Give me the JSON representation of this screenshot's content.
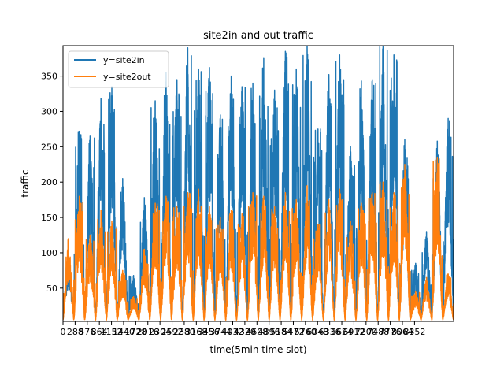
{
  "chart_data": {
    "type": "line",
    "title": "site2in and out traffic",
    "xlabel": "time(5min time slot)",
    "ylabel": "traffic",
    "x_range": [
      0,
      3600
    ],
    "ylim": [
      3,
      393
    ],
    "y_ticks": [
      50,
      100,
      150,
      200,
      250,
      300,
      350
    ],
    "x_tick_labels": [
      "0",
      "288",
      "576",
      "864",
      "1152",
      "1440",
      "1728",
      "2016",
      "2304",
      "2592",
      "2880",
      "3168",
      "3456",
      "3744",
      "4032",
      "4320",
      "4608",
      "4896",
      "5184",
      "5472",
      "5760",
      "6048",
      "6336",
      "6624",
      "6912",
      "7200",
      "7488",
      "7776",
      "8064",
      "8352"
    ],
    "grid": false,
    "legend_position": "top-left",
    "series": [
      {
        "name": "y=site2in",
        "color": "#1f77b4",
        "daily_peaks": [
          95,
          272,
          265,
          318,
          335,
          205,
          68,
          178,
          315,
          355,
          345,
          390,
          360,
          362,
          295,
          350,
          335,
          340,
          375,
          330,
          385,
          360,
          395,
          275,
          352,
          380,
          250,
          343,
          345,
          395,
          380,
          260,
          85,
          130,
          258,
          290
        ],
        "daily_baseline": [
          10,
          8,
          8,
          8,
          8,
          8,
          8,
          8,
          8,
          8,
          8,
          8,
          8,
          8,
          8,
          8,
          8,
          8,
          8,
          8,
          8,
          8,
          8,
          8,
          8,
          8,
          8,
          8,
          8,
          8,
          8,
          8,
          8,
          8,
          8,
          8
        ]
      },
      {
        "name": "y=site2out",
        "color": "#ff7f0e",
        "daily_peaks": [
          120,
          180,
          125,
          160,
          145,
          75,
          38,
          105,
          170,
          180,
          165,
          185,
          190,
          165,
          150,
          160,
          155,
          185,
          180,
          165,
          185,
          175,
          195,
          140,
          175,
          190,
          145,
          170,
          185,
          200,
          185,
          225,
          45,
          65,
          235,
          70
        ],
        "daily_baseline": [
          5,
          5,
          5,
          5,
          5,
          5,
          5,
          5,
          5,
          5,
          5,
          5,
          5,
          5,
          5,
          5,
          5,
          5,
          5,
          5,
          5,
          5,
          5,
          5,
          5,
          5,
          5,
          5,
          5,
          5,
          5,
          5,
          5,
          5,
          5,
          5
        ]
      }
    ]
  }
}
